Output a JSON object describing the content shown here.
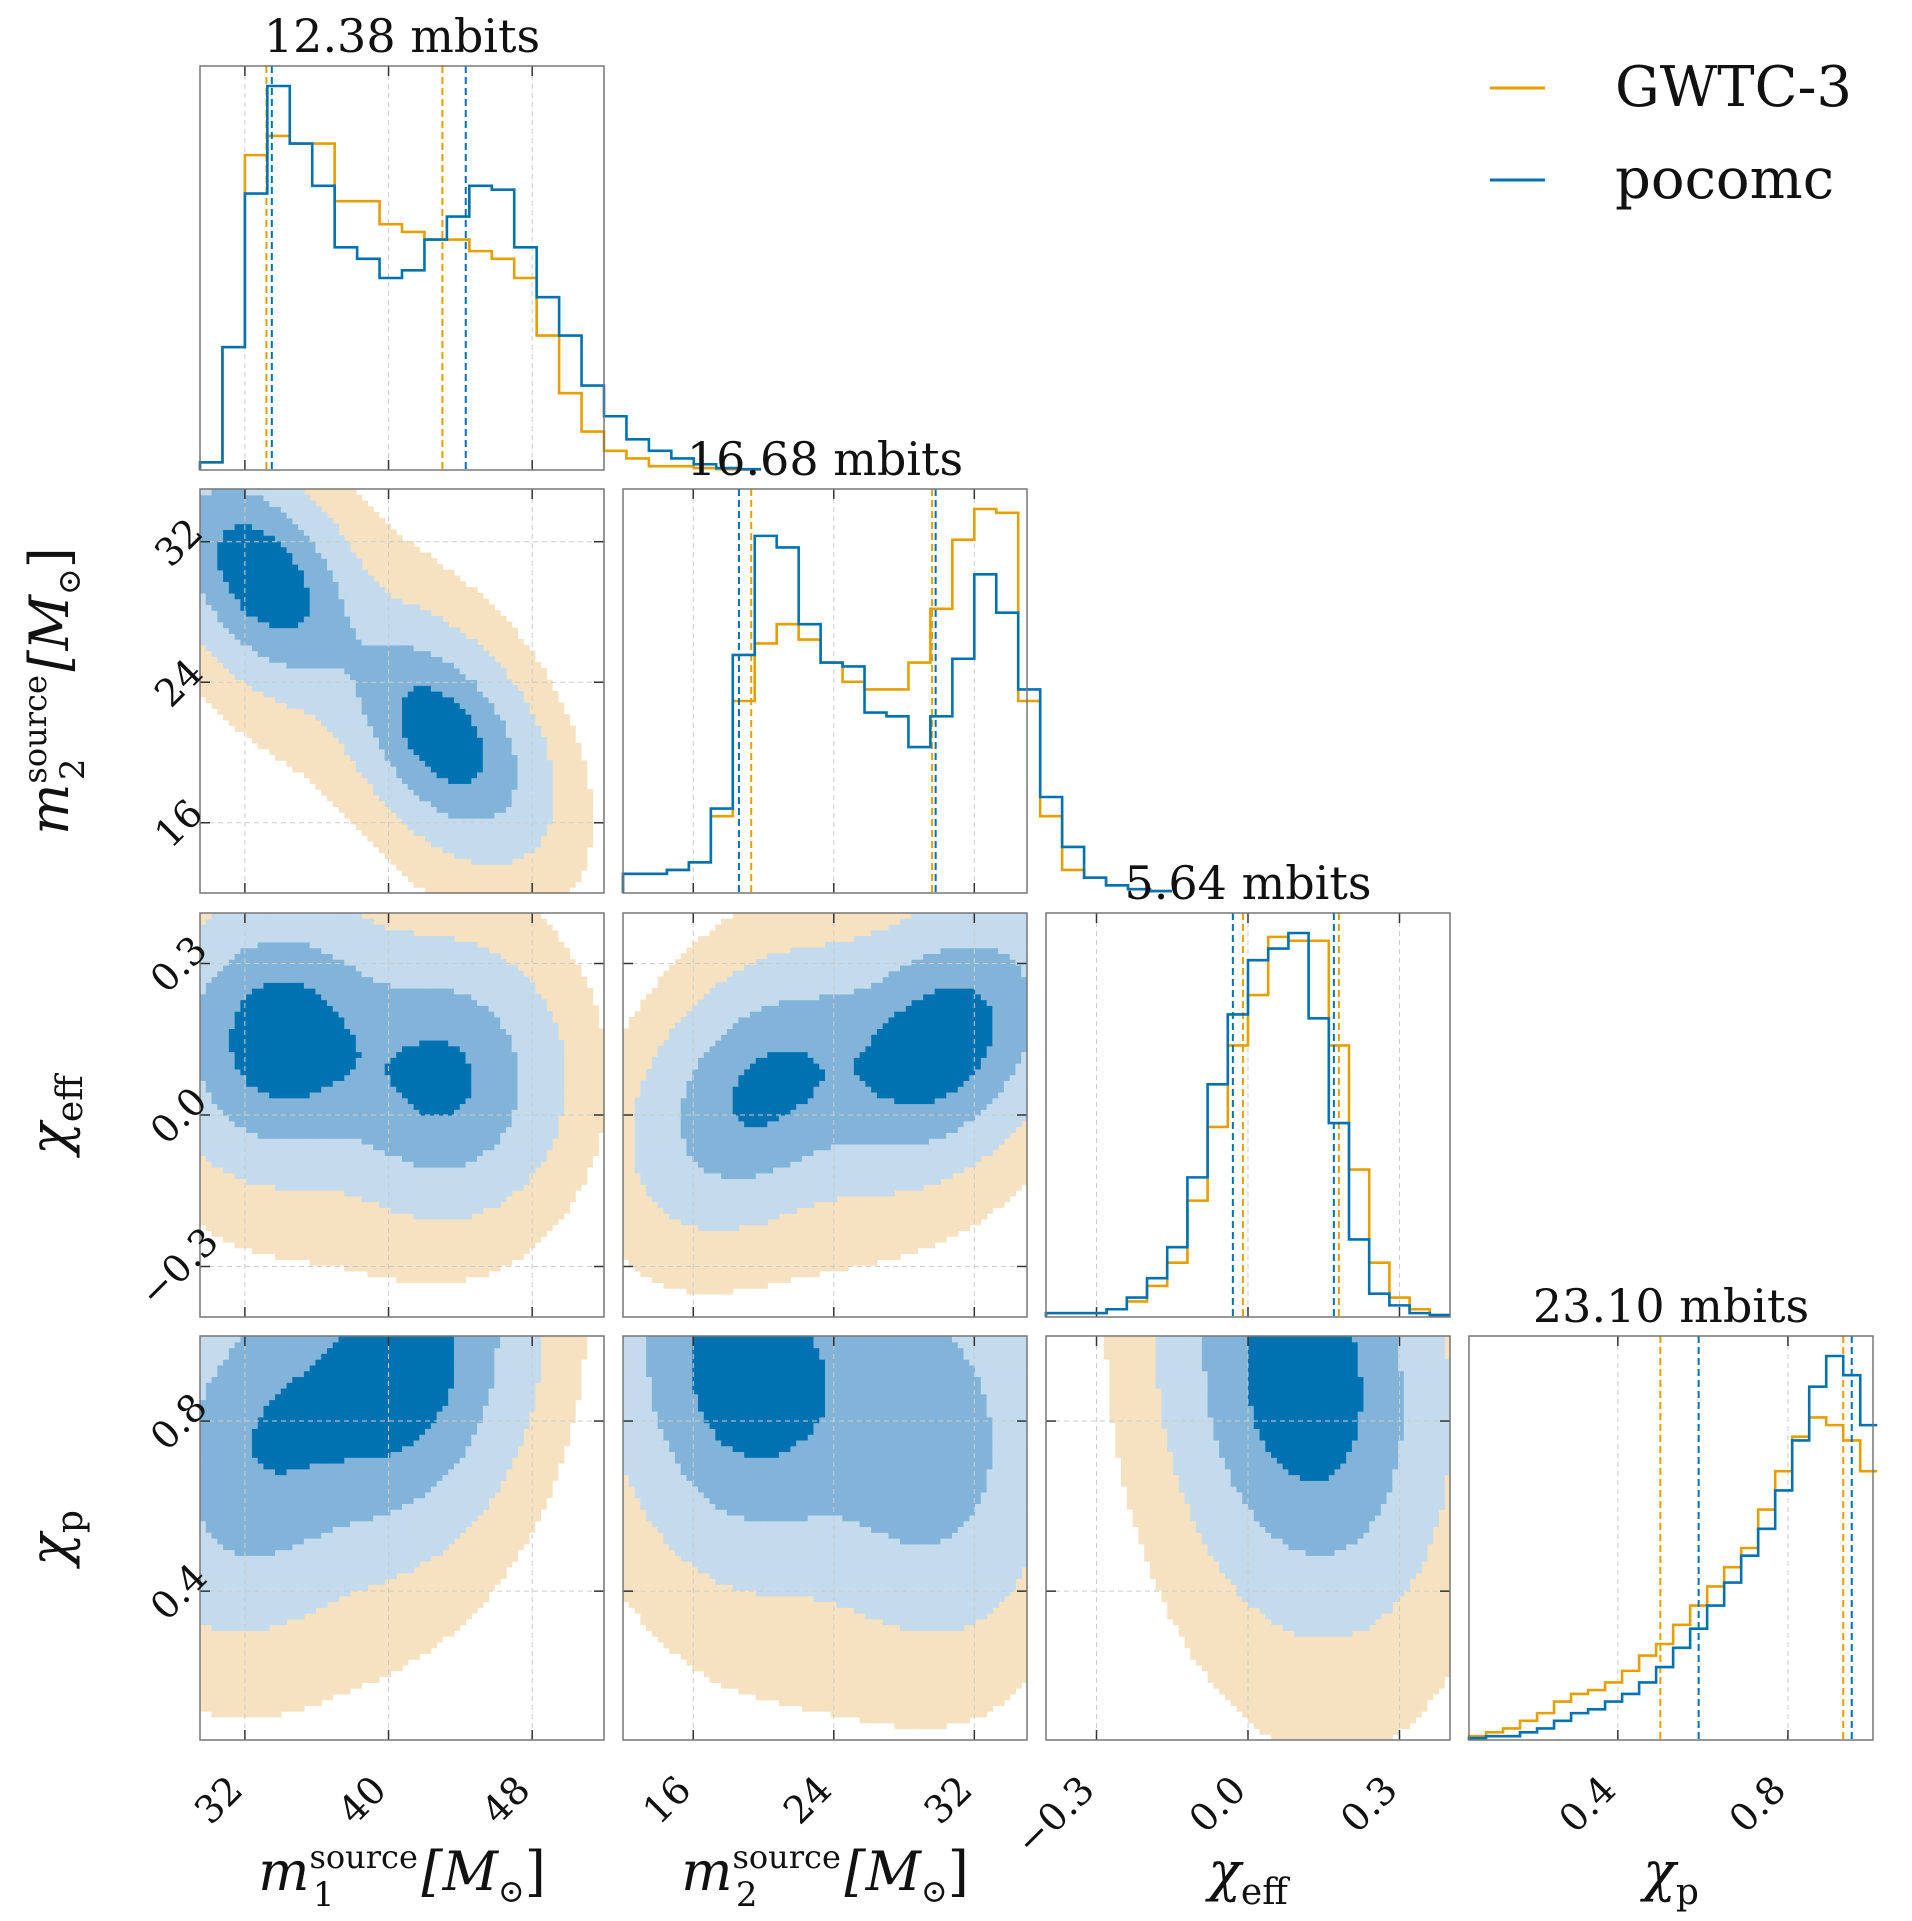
{
  "chart_data": {
    "type": "corner",
    "parameters": [
      {
        "key": "m1",
        "label": "m",
        "sub": "1",
        "sup": "source",
        "unit": "[M",
        "unit_sub": "⊙",
        "unit_close": "]",
        "range": [
          29.5,
          52
        ],
        "ticks": [
          32,
          40,
          48
        ],
        "tick_labels": [
          "32",
          "40",
          "48"
        ]
      },
      {
        "key": "m2",
        "label": "m",
        "sub": "2",
        "sup": "source",
        "unit": "[M",
        "unit_sub": "⊙",
        "unit_close": "]",
        "range": [
          12,
          35
        ],
        "ticks": [
          16,
          24,
          32
        ],
        "tick_labels": [
          "16",
          "24",
          "32"
        ]
      },
      {
        "key": "chi_eff",
        "label": "χ",
        "sub": "eff",
        "range": [
          -0.4,
          0.4
        ],
        "ticks": [
          -0.3,
          0.0,
          0.3
        ],
        "tick_labels": [
          "−0.3",
          "0.0",
          "0.3"
        ]
      },
      {
        "key": "chi_p",
        "label": "χ",
        "sub": "p",
        "range": [
          0.05,
          1.0
        ],
        "ticks": [
          0.4,
          0.8
        ],
        "tick_labels": [
          "0.4",
          "0.8"
        ]
      }
    ],
    "diagonal_titles": [
      "12.38 mbits",
      "16.68 mbits",
      "5.64 mbits",
      "23.10 mbits"
    ],
    "legend": [
      {
        "name": "GWTC-3",
        "color": "#e69f00"
      },
      {
        "name": "pocomc",
        "color": "#0072b2"
      }
    ],
    "legend_position": "top-right",
    "histograms": [
      {
        "edges_start": 29.5,
        "bin_width": 1.25,
        "series": [
          {
            "name": "GWTC-3",
            "values": [
              0.02,
              0.32,
              0.82,
              0.87,
              0.85,
              0.85,
              0.7,
              0.7,
              0.64,
              0.62,
              0.6,
              0.6,
              0.57,
              0.55,
              0.5,
              0.35,
              0.2,
              0.1,
              0.05,
              0.03,
              0.01,
              0.01,
              0.005,
              0.002,
              0.001
            ]
          },
          {
            "name": "pocomc",
            "values": [
              0.02,
              0.32,
              0.72,
              1.0,
              0.85,
              0.74,
              0.58,
              0.55,
              0.5,
              0.52,
              0.6,
              0.66,
              0.74,
              0.73,
              0.58,
              0.45,
              0.35,
              0.22,
              0.14,
              0.08,
              0.05,
              0.03,
              0.015,
              0.005,
              0.002
            ]
          }
        ],
        "quantiles": {
          "GWTC-3": [
            33.2,
            43.0
          ],
          "pocomc": [
            33.5,
            44.3
          ]
        }
      },
      {
        "edges_start": 12.0,
        "bin_width": 1.25,
        "series": [
          {
            "name": "GWTC-3",
            "values": [
              0.05,
              0.05,
              0.06,
              0.08,
              0.2,
              0.5,
              0.65,
              0.7,
              0.66,
              0.6,
              0.55,
              0.53,
              0.53,
              0.6,
              0.74,
              0.92,
              1.0,
              0.99,
              0.5,
              0.2,
              0.06,
              0.04,
              0.02,
              0.01,
              0.005
            ]
          },
          {
            "name": "pocomc",
            "values": [
              0.05,
              0.05,
              0.06,
              0.08,
              0.22,
              0.62,
              0.93,
              0.9,
              0.7,
              0.6,
              0.59,
              0.47,
              0.46,
              0.38,
              0.46,
              0.61,
              0.83,
              0.73,
              0.53,
              0.25,
              0.12,
              0.04,
              0.02,
              0.01,
              0.005
            ]
          }
        ],
        "quantiles": {
          "GWTC-3": [
            19.3,
            29.6
          ],
          "pocomc": [
            18.6,
            29.8
          ]
        }
      },
      {
        "edges_start": -0.4,
        "bin_width": 0.04,
        "series": [
          {
            "name": "GWTC-3",
            "values": [
              0.01,
              0.01,
              0.01,
              0.02,
              0.04,
              0.08,
              0.14,
              0.3,
              0.49,
              0.7,
              0.83,
              0.98,
              0.97,
              0.97,
              0.7,
              0.38,
              0.14,
              0.05,
              0.02,
              0.005
            ]
          },
          {
            "name": "pocomc",
            "values": [
              0.01,
              0.01,
              0.01,
              0.02,
              0.05,
              0.1,
              0.18,
              0.36,
              0.6,
              0.78,
              0.92,
              0.95,
              0.99,
              0.77,
              0.5,
              0.2,
              0.06,
              0.03,
              0.01,
              0.005
            ]
          }
        ],
        "quantiles": {
          "GWTC-3": [
            -0.01,
            0.18
          ],
          "pocomc": [
            -0.03,
            0.17
          ]
        }
      },
      {
        "edges_start": 0.05,
        "bin_width": 0.04,
        "series": [
          {
            "name": "GWTC-3",
            "values": [
              0.01,
              0.02,
              0.03,
              0.05,
              0.07,
              0.1,
              0.12,
              0.13,
              0.15,
              0.18,
              0.22,
              0.25,
              0.3,
              0.35,
              0.4,
              0.45,
              0.5,
              0.6,
              0.7,
              0.79,
              0.84,
              0.82,
              0.78,
              0.7
            ]
          },
          {
            "name": "pocomc",
            "values": [
              0.005,
              0.01,
              0.01,
              0.02,
              0.03,
              0.05,
              0.07,
              0.08,
              0.1,
              0.12,
              0.15,
              0.19,
              0.24,
              0.29,
              0.35,
              0.41,
              0.48,
              0.55,
              0.65,
              0.78,
              0.92,
              1.0,
              0.95,
              0.82
            ]
          }
        ],
        "quantiles": {
          "GWTC-3": [
            0.5,
            0.93
          ],
          "pocomc": [
            0.59,
            0.95
          ]
        }
      }
    ],
    "density_modes": {
      "m2_vs_m1": [
        {
          "x": 33.0,
          "y": 30.0,
          "weight": 1.0
        },
        {
          "x": 43.0,
          "y": 21.0,
          "weight": 0.95
        }
      ],
      "chi_eff_vs_m1": [
        {
          "x": 34.0,
          "y": 0.15,
          "weight": 1.0
        },
        {
          "x": 43.0,
          "y": 0.07,
          "weight": 0.8
        }
      ],
      "chi_eff_vs_m2": [
        {
          "x": 20.0,
          "y": 0.05,
          "weight": 0.8
        },
        {
          "x": 30.0,
          "y": 0.14,
          "weight": 1.0
        }
      ],
      "chi_p_vs_m1": [
        {
          "x": 33.0,
          "y": 0.75,
          "weight": 0.7
        },
        {
          "x": 41.0,
          "y": 0.93,
          "weight": 1.0
        }
      ],
      "chi_p_vs_m2": [
        {
          "x": 19.0,
          "y": 0.93,
          "weight": 1.0
        },
        {
          "x": 29.0,
          "y": 0.77,
          "weight": 0.6
        }
      ],
      "chi_p_vs_chi_eff": [
        {
          "x": 0.11,
          "y": 0.9,
          "weight": 1.0
        }
      ]
    },
    "contour_levels": [
      "39%",
      "86%",
      "99%"
    ],
    "grid": true
  }
}
